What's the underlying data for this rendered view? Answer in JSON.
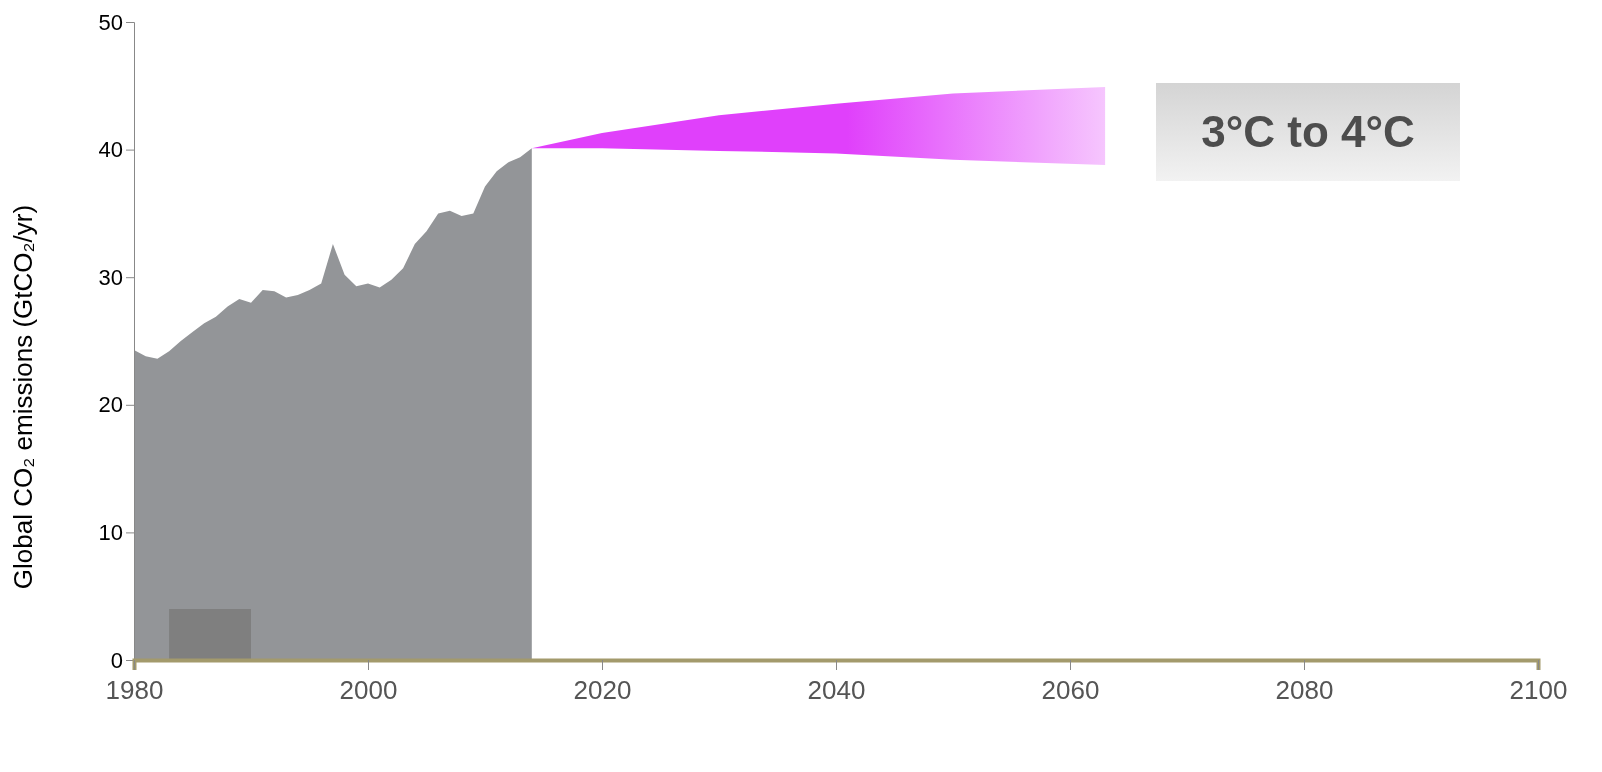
{
  "chart_data": {
    "type": "area",
    "ylabel": "Global CO₂ emissions (GtCO₂/yr)",
    "xlim": [
      1980,
      2100
    ],
    "xticks": [
      1980,
      2000,
      2020,
      2040,
      2060,
      2080,
      2100
    ],
    "ylim": [
      0,
      50
    ],
    "yticks": [
      0,
      10,
      20,
      30,
      40,
      50
    ],
    "grid": false,
    "annotations": [
      "3°C to 4°C"
    ],
    "series": [
      {
        "color": "#939598",
        "x": [
          1980,
          1981,
          1982,
          1983,
          1984,
          1985,
          1986,
          1987,
          1988,
          1989,
          1990,
          1991,
          1992,
          1993,
          1994,
          1995,
          1996,
          1997,
          1998,
          1999,
          2000,
          2001,
          2002,
          2003,
          2004,
          2005,
          2006,
          2007,
          2008,
          2009,
          2010,
          2011,
          2012,
          2013,
          2014
        ],
        "values": [
          24.3,
          23.8,
          23.6,
          24.2,
          25.0,
          25.7,
          26.4,
          26.9,
          27.7,
          28.3,
          28.0,
          29.0,
          28.9,
          28.4,
          28.6,
          29.0,
          29.5,
          32.6,
          30.2,
          29.3,
          29.5,
          29.2,
          29.8,
          30.7,
          32.6,
          33.6,
          35.0,
          35.2,
          34.8,
          35.0,
          37.1,
          38.3,
          39.0,
          39.4,
          40.1
        ]
      },
      {
        "color": "#7f7f7f",
        "x": [
          1983,
          1990
        ],
        "values": [
          4,
          4
        ]
      },
      {
        "type": "line",
        "color": "#e040fb",
        "x": [
          2014,
          2020,
          2030,
          2040,
          2050,
          2063
        ],
        "values": [
          null,
          null,
          null,
          null,
          null,
          null
        ],
        "lower": [
          40.1,
          40.1,
          39.9,
          39.7,
          39.2,
          38.8
        ],
        "upper": [
          40.1,
          41.3,
          42.7,
          43.6,
          44.4,
          44.9
        ]
      }
    ]
  }
}
